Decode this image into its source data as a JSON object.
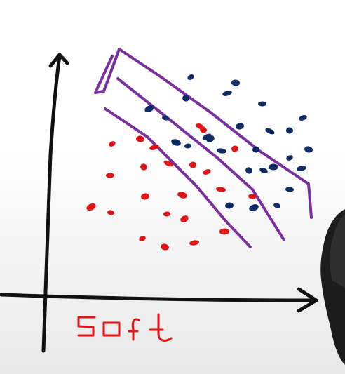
{
  "annotation": {
    "text": "soft"
  },
  "colors": {
    "axis": "#111111",
    "boundary": "#7b2fa0",
    "class_red": "#e01414",
    "class_blue": "#0f2b66",
    "person_overlay": "#222222"
  },
  "icons": {
    "presenter": "person-silhouette"
  }
}
